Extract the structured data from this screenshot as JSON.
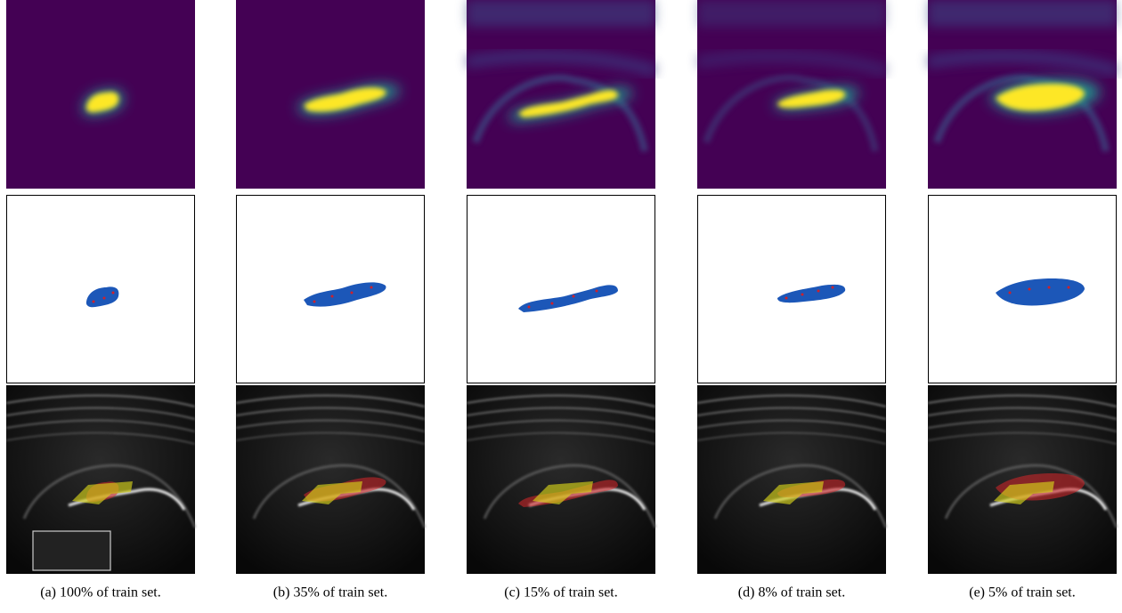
{
  "captions": [
    "(a) 100% of train set.",
    "(b) 35% of train set.",
    "(c) 15% of train set.",
    "(d) 8% of train set.",
    "(e) 5% of train set."
  ]
}
